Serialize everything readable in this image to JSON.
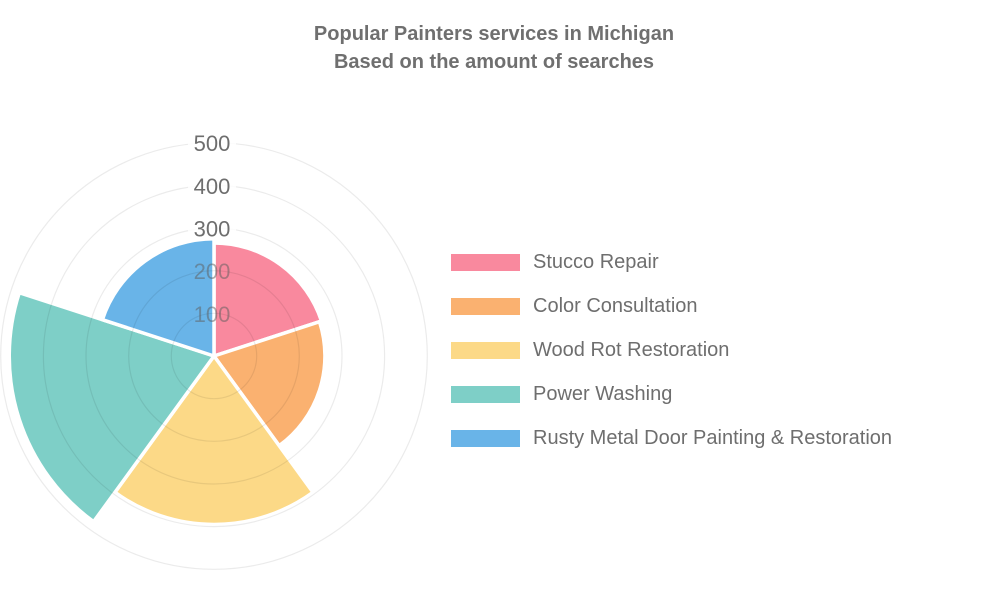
{
  "title": {
    "line1": "Popular Painters services in Michigan",
    "line2": "Based on the amount of searches"
  },
  "chart_data": {
    "type": "polarArea",
    "title": "Popular Painters services in Michigan Based on the amount of searches",
    "categories": [
      "Stucco Repair",
      "Color Consultation",
      "Wood Rot Restoration",
      "Power Washing",
      "Rusty Metal Door Painting & Restoration"
    ],
    "values": [
      265,
      260,
      395,
      480,
      275
    ],
    "colors": [
      "#f9899e",
      "#fab170",
      "#fcd987",
      "#7ecfc7",
      "#69b4e8"
    ],
    "border_color": "#ffffff",
    "r_ticks": [
      100,
      200,
      300,
      400,
      500
    ],
    "r_max": 500,
    "start": "top",
    "direction": "clockwise",
    "legend_position": "right",
    "grid": true,
    "grid_color": "rgba(0,0,0,0.08)",
    "tick_color": "#6e6e6e",
    "title_color": "#6f6f6f",
    "legend_text_color": "#6e6e6e"
  }
}
